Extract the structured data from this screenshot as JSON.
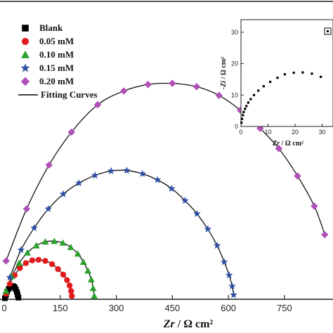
{
  "chart_data": [
    {
      "type": "scatter",
      "xlabel_italic": "Zr",
      "xlabel_unit": " / Ω cm²",
      "xlim": [
        0,
        880
      ],
      "xticks": [
        0,
        150,
        300,
        450,
        600,
        750
      ],
      "xtick_labels": [
        "0",
        "150",
        "300",
        "450",
        "600",
        "750"
      ],
      "legend_position": "top-left",
      "series": [
        {
          "name": "Blank",
          "marker": "square",
          "color": "#000000",
          "x": [
            2,
            5,
            8,
            12,
            16,
            20,
            24,
            28,
            31,
            34,
            36,
            38
          ],
          "y": [
            2,
            8,
            14,
            19,
            22,
            24,
            24,
            22,
            18,
            13,
            8,
            3
          ]
        },
        {
          "name": "0.05 mM",
          "marker": "circle",
          "color": "#e31a1c",
          "x": [
            5,
            15,
            28,
            42,
            58,
            75,
            92,
            110,
            128,
            144,
            158,
            168,
            175,
            179,
            181
          ],
          "y": [
            10,
            28,
            44,
            57,
            66,
            71,
            72,
            70,
            64,
            55,
            45,
            35,
            25,
            15,
            6
          ]
        },
        {
          "name": "0.10 mM",
          "marker": "triangle",
          "color": "#2ca02c",
          "x": [
            5,
            20,
            40,
            62,
            86,
            110,
            134,
            157,
            178,
            197,
            212,
            224,
            233,
            238,
            241
          ],
          "y": [
            15,
            42,
            66,
            85,
            98,
            105,
            106,
            103,
            95,
            83,
            68,
            52,
            36,
            20,
            6
          ]
        },
        {
          "name": "0.15 mM",
          "marker": "star",
          "color": "#2e4fa3",
          "x": [
            15,
            45,
            80,
            118,
            158,
            200,
            243,
            286,
            328,
            370,
            410,
            448,
            484,
            516,
            545,
            570,
            589,
            602,
            610,
            614
          ],
          "y": [
            40,
            90,
            130,
            165,
            192,
            212,
            226,
            234,
            235,
            229,
            218,
            202,
            180,
            156,
            128,
            98,
            68,
            44,
            24,
            8
          ]
        },
        {
          "name": "0.20 mM",
          "marker": "diamond",
          "color": "#b150b8",
          "x": [
            5,
            60,
            120,
            180,
            250,
            320,
            385,
            450,
            515,
            575,
            632,
            685,
            735,
            785,
            830,
            858
          ],
          "y": [
            70,
            165,
            245,
            305,
            355,
            380,
            392,
            394,
            388,
            372,
            345,
            312,
            275,
            225,
            170,
            118
          ]
        },
        {
          "name": "Fitting Curves",
          "marker": "line",
          "color": "#000000"
        }
      ]
    },
    {
      "type": "scatter",
      "xlabel_italic": "Zr",
      "xlabel_unit": " / Ω cm²",
      "ylabel_italic": "-Zi",
      "ylabel_unit": " / Ω cm²",
      "xlim": [
        0,
        34
      ],
      "ylim": [
        0,
        34
      ],
      "xticks": [
        0,
        10,
        20,
        30
      ],
      "xtick_labels": [
        "0",
        "10",
        "20",
        "30"
      ],
      "yticks": [
        0,
        10,
        20,
        30
      ],
      "ytick_labels": [
        "0",
        "10",
        "20",
        "30"
      ],
      "series": [
        {
          "name": "Blank",
          "marker": "square",
          "color": "#000000",
          "x": [
            0.2,
            0.4,
            0.7,
            1.0,
            1.5,
            2.0,
            2.7,
            3.6,
            4.8,
            6.4,
            8.4,
            10.8,
            13.5,
            16.2,
            19.5,
            22.8,
            26.2,
            29.5
          ],
          "y": [
            1.2,
            2.4,
            3.6,
            4.6,
            5.6,
            6.5,
            7.6,
            8.7,
            10.0,
            11.4,
            12.8,
            14.2,
            15.5,
            16.6,
            17.1,
            17.2,
            16.8,
            15.8
          ]
        }
      ]
    }
  ]
}
